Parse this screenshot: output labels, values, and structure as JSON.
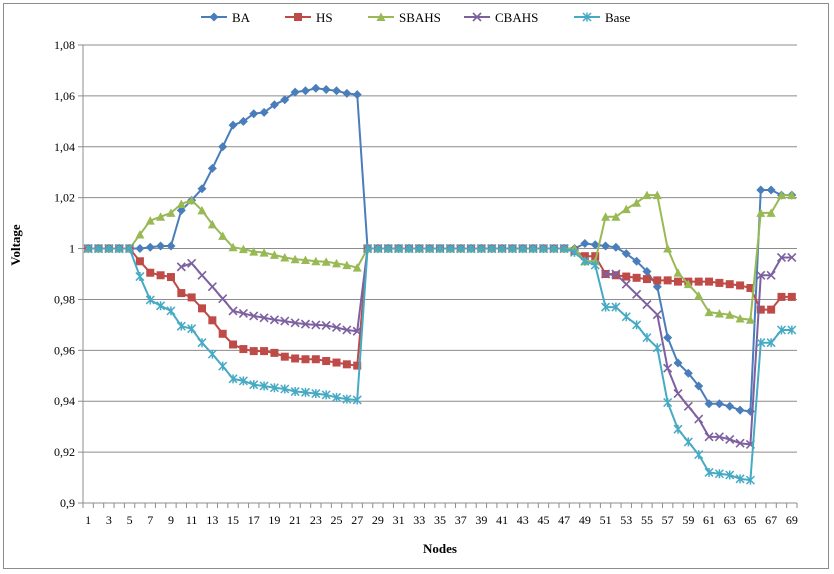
{
  "chart_data": {
    "type": "line",
    "title": "",
    "xlabel": "Nodes",
    "ylabel": "Voltage",
    "ylim": [
      0.9,
      1.08
    ],
    "y_ticks": [
      "0,9",
      "0,92",
      "0,94",
      "0,96",
      "0,98",
      "1",
      "1,02",
      "1,04",
      "1,06",
      "1,08"
    ],
    "x": [
      1,
      2,
      3,
      4,
      5,
      6,
      7,
      8,
      9,
      10,
      11,
      12,
      13,
      14,
      15,
      16,
      17,
      18,
      19,
      20,
      21,
      22,
      23,
      24,
      25,
      26,
      27,
      28,
      29,
      30,
      31,
      32,
      33,
      34,
      35,
      36,
      37,
      38,
      39,
      40,
      41,
      42,
      43,
      44,
      45,
      46,
      47,
      48,
      49,
      50,
      51,
      52,
      53,
      54,
      55,
      56,
      57,
      58,
      59,
      60,
      61,
      62,
      63,
      64,
      65,
      66,
      67,
      68,
      69
    ],
    "x_tick_labels": [
      "1",
      "3",
      "5",
      "7",
      "9",
      "11",
      "13",
      "15",
      "17",
      "19",
      "21",
      "23",
      "25",
      "27",
      "29",
      "31",
      "33",
      "35",
      "37",
      "39",
      "41",
      "43",
      "45",
      "47",
      "49",
      "51",
      "53",
      "55",
      "57",
      "59",
      "61",
      "63",
      "65",
      "67",
      "69"
    ],
    "grid": "horizontal",
    "legend_position": "top",
    "series": [
      {
        "name": "BA",
        "color": "#4a7ebb",
        "marker": "diamond",
        "values": [
          1.0,
          1.0,
          1.0,
          1.0,
          1.0,
          1.0,
          1.0005,
          1.001,
          1.001,
          1.015,
          1.019,
          1.0235,
          1.0315,
          1.04,
          1.0485,
          1.05,
          1.053,
          1.0535,
          1.0565,
          1.0585,
          1.0615,
          1.062,
          1.063,
          1.0625,
          1.062,
          1.061,
          1.0605,
          1.0,
          1.0,
          1.0,
          1.0,
          1.0,
          1.0,
          1.0,
          1.0,
          1.0,
          1.0,
          1.0,
          1.0,
          1.0,
          1.0,
          1.0,
          1.0,
          1.0,
          1.0,
          1.0,
          1.0,
          1.0,
          1.002,
          1.0015,
          1.001,
          1.0005,
          0.998,
          0.995,
          0.991,
          0.985,
          0.965,
          0.955,
          0.951,
          0.946,
          0.939,
          0.939,
          0.938,
          0.9365,
          0.936,
          1.023,
          1.023,
          1.021,
          1.021
        ]
      },
      {
        "name": "HS",
        "color": "#be4b48",
        "marker": "square",
        "values": [
          1.0,
          1.0,
          1.0,
          1.0,
          1.0,
          0.995,
          0.9905,
          0.9895,
          0.9888,
          0.9825,
          0.9808,
          0.9765,
          0.9718,
          0.9665,
          0.9623,
          0.9605,
          0.9597,
          0.9597,
          0.959,
          0.9575,
          0.9568,
          0.9565,
          0.9565,
          0.9558,
          0.9552,
          0.9545,
          0.954,
          1.0,
          1.0,
          1.0,
          1.0,
          1.0,
          1.0,
          1.0,
          1.0,
          1.0,
          1.0,
          1.0,
          1.0,
          1.0,
          1.0,
          1.0,
          1.0,
          1.0,
          1.0,
          1.0,
          1.0,
          0.999,
          0.997,
          0.997,
          0.99,
          0.9895,
          0.989,
          0.9885,
          0.988,
          0.9875,
          0.9875,
          0.987,
          0.987,
          0.987,
          0.987,
          0.9865,
          0.986,
          0.9855,
          0.9845,
          0.976,
          0.976,
          0.981,
          0.981
        ]
      },
      {
        "name": "SBAHS",
        "color": "#98b954",
        "marker": "triangle",
        "values": [
          1.0,
          1.0,
          1.0,
          1.0,
          1.0,
          1.0055,
          1.011,
          1.0125,
          1.014,
          1.0175,
          1.019,
          1.015,
          1.0095,
          1.005,
          1.0005,
          0.9998,
          0.9988,
          0.9984,
          0.9975,
          0.9965,
          0.9958,
          0.9955,
          0.995,
          0.9948,
          0.9942,
          0.9935,
          0.9925,
          1.0,
          1.0,
          1.0,
          1.0,
          1.0,
          1.0,
          1.0,
          1.0,
          1.0,
          1.0,
          1.0,
          1.0,
          1.0,
          1.0,
          1.0,
          1.0,
          1.0,
          1.0,
          1.0,
          1.0,
          1.0,
          0.995,
          0.995,
          1.0125,
          1.0125,
          1.0155,
          1.018,
          1.021,
          1.021,
          1.0,
          0.9905,
          0.986,
          0.9815,
          0.975,
          0.9745,
          0.974,
          0.9725,
          0.972,
          1.014,
          1.014,
          1.021,
          1.021
        ]
      },
      {
        "name": "CBAHS",
        "color": "#7d60a0",
        "marker": "cross",
        "values": [
          1.0,
          1.0,
          1.0,
          1.0,
          1.0,
          null,
          null,
          null,
          null,
          0.9928,
          0.9942,
          0.9895,
          0.985,
          0.9803,
          0.9755,
          0.9745,
          0.9735,
          0.9728,
          0.972,
          0.9715,
          0.9708,
          0.9703,
          0.97,
          0.9698,
          0.969,
          0.968,
          0.9675,
          1.0,
          1.0,
          1.0,
          1.0,
          1.0,
          1.0,
          1.0,
          1.0,
          1.0,
          1.0,
          1.0,
          1.0,
          1.0,
          1.0,
          1.0,
          1.0,
          1.0,
          1.0,
          1.0,
          1.0,
          null,
          null,
          null,
          0.99,
          0.99,
          0.986,
          0.982,
          0.978,
          0.974,
          0.953,
          0.943,
          0.938,
          0.933,
          0.926,
          0.926,
          0.925,
          0.9235,
          0.923,
          0.9895,
          0.9895,
          0.9965,
          0.9965
        ]
      },
      {
        "name": "Base",
        "color": "#46aac5",
        "marker": "star",
        "values": [
          1.0,
          1.0,
          1.0,
          1.0,
          1.0,
          0.989,
          0.9798,
          0.9775,
          0.9755,
          0.9695,
          0.9685,
          0.963,
          0.9585,
          0.9538,
          0.9488,
          0.948,
          0.9465,
          0.946,
          0.9453,
          0.9448,
          0.9438,
          0.9435,
          0.943,
          0.9425,
          0.9415,
          0.9408,
          0.9405,
          1.0,
          1.0,
          1.0,
          1.0,
          1.0,
          1.0,
          1.0,
          1.0,
          1.0,
          1.0,
          1.0,
          1.0,
          1.0,
          1.0,
          1.0,
          1.0,
          1.0,
          1.0,
          1.0,
          1.0,
          0.9985,
          0.995,
          0.9935,
          0.977,
          0.977,
          0.9732,
          0.97,
          0.965,
          0.961,
          0.9395,
          0.929,
          0.924,
          0.919,
          0.912,
          0.9115,
          0.911,
          0.9095,
          0.909,
          0.963,
          0.963,
          0.968,
          0.968
        ]
      }
    ]
  }
}
